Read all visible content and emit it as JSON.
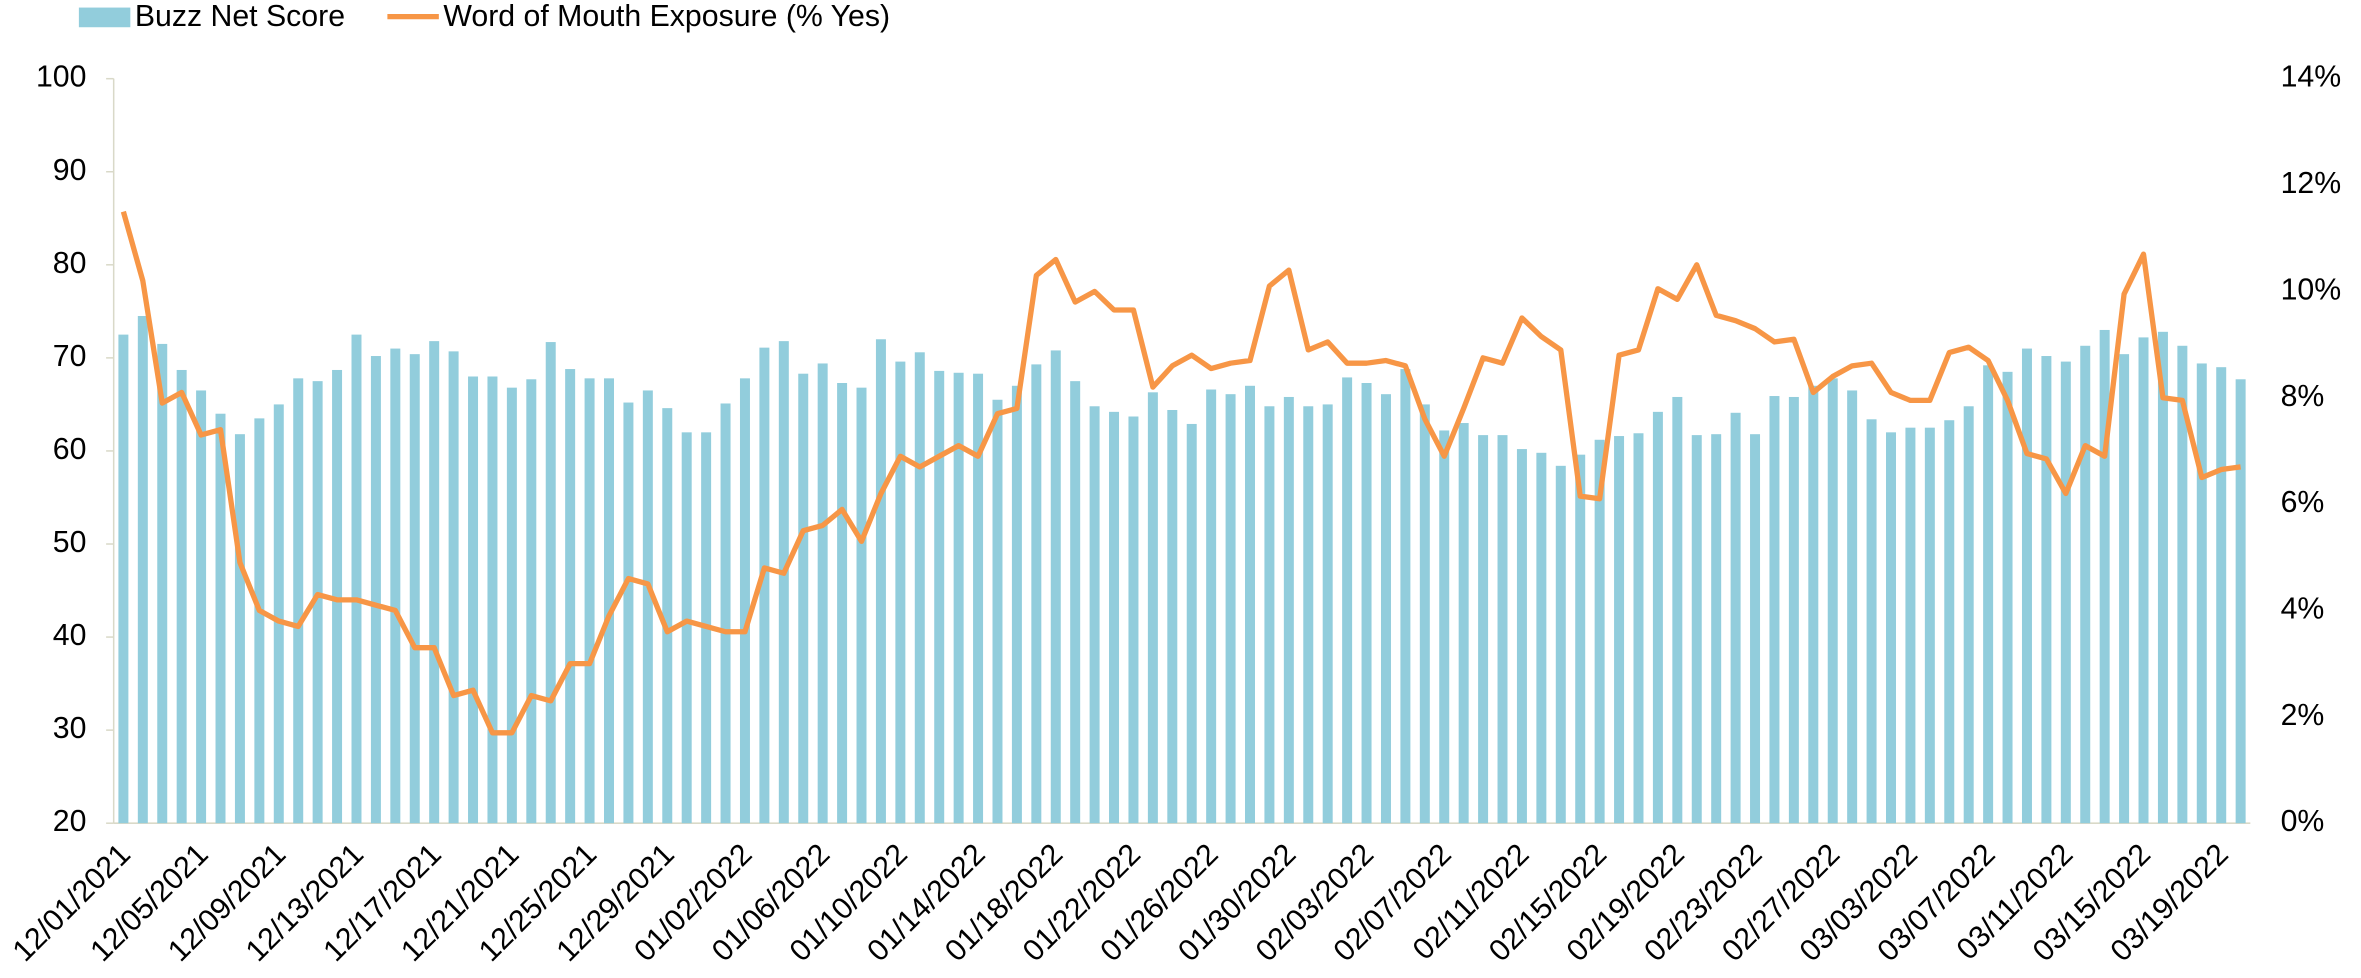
{
  "chart_data": {
    "type": "bar-line",
    "categories": [
      "12/01/2021",
      null,
      null,
      null,
      "12/05/2021",
      null,
      null,
      null,
      "12/09/2021",
      null,
      null,
      null,
      "12/13/2021",
      null,
      null,
      null,
      "12/17/2021",
      null,
      null,
      null,
      "12/21/2021",
      null,
      null,
      null,
      "12/25/2021",
      null,
      null,
      null,
      "12/29/2021",
      null,
      null,
      null,
      "01/02/2022",
      null,
      null,
      null,
      "01/06/2022",
      null,
      null,
      null,
      "01/10/2022",
      null,
      null,
      null,
      "01/14/2022",
      null,
      null,
      null,
      "01/18/2022",
      null,
      null,
      null,
      "01/22/2022",
      null,
      null,
      null,
      "01/26/2022",
      null,
      null,
      null,
      "01/30/2022",
      null,
      null,
      null,
      "02/03/2022",
      null,
      null,
      null,
      "02/07/2022",
      null,
      null,
      null,
      "02/11/2022",
      null,
      null,
      null,
      "02/15/2022",
      null,
      null,
      null,
      "02/19/2022",
      null,
      null,
      null,
      "02/23/2022",
      null,
      null,
      null,
      "02/27/2022",
      null,
      null,
      null,
      "03/03/2022",
      null,
      null,
      null,
      "03/07/2022",
      null,
      null,
      null,
      "03/11/2022",
      null,
      null,
      null,
      "03/15/2022",
      null,
      null,
      null,
      "03/19/2022",
      null
    ],
    "series": [
      {
        "name": "Buzz Net Score",
        "type": "bar",
        "color": "#92cddc",
        "values": [
          72.5,
          74.5,
          71.5,
          68.7,
          66.5,
          64,
          61.8,
          63.5,
          65,
          67.8,
          67.5,
          68.7,
          72.5,
          70.2,
          71,
          70.4,
          71.8,
          70.7,
          68,
          68,
          66.8,
          67.7,
          71.7,
          68.8,
          67.8,
          67.8,
          65.2,
          66.5,
          64.6,
          62,
          62,
          65.1,
          67.8,
          71.1,
          71.8,
          68.3,
          69.4,
          67.3,
          66.8,
          72,
          69.6,
          70.6,
          68.6,
          68.4,
          68.3,
          65.5,
          67,
          69.3,
          70.8,
          67.5,
          64.8,
          64.2,
          63.7,
          66.3,
          64.4,
          62.9,
          66.6,
          66.1,
          67,
          64.8,
          65.8,
          64.8,
          65,
          67.9,
          67.3,
          66.1,
          68.8,
          65,
          62.2,
          63,
          61.7,
          61.7,
          60.2,
          59.8,
          58.4,
          59.6,
          61.2,
          61.6,
          61.9,
          64.2,
          65.8,
          61.7,
          61.8,
          64.1,
          61.8,
          65.9,
          65.8,
          67,
          67.8,
          66.5,
          63.4,
          62,
          62.5,
          62.5,
          63.3,
          64.8,
          69.2,
          68.5,
          71,
          70.2,
          69.6,
          71.3,
          73,
          70.4,
          72.2,
          72.8,
          71.3,
          69.4,
          69,
          67.7
        ]
      },
      {
        "name": "Word of Mouth Exposure (% Yes)",
        "type": "line",
        "axis": "y2",
        "color": "#f79646",
        "values": [
          11.5,
          10.2,
          7.9,
          8.1,
          7.3,
          7.4,
          4.9,
          4.0,
          3.8,
          3.7,
          4.3,
          4.2,
          4.2,
          4.1,
          4.0,
          3.3,
          3.3,
          2.4,
          2.5,
          1.7,
          1.7,
          2.4,
          2.3,
          3.0,
          3.0,
          3.9,
          4.6,
          4.5,
          3.6,
          3.8,
          3.7,
          3.6,
          3.6,
          4.8,
          4.7,
          5.5,
          5.6,
          5.9,
          5.3,
          6.2,
          6.9,
          6.7,
          6.9,
          7.1,
          6.9,
          7.7,
          7.8,
          10.3,
          10.6,
          9.8,
          10.0,
          9.65,
          9.65,
          8.2,
          8.6,
          8.8,
          8.55,
          8.65,
          8.7,
          10.1,
          10.4,
          8.9,
          9.05,
          8.65,
          8.65,
          8.7,
          8.6,
          7.6,
          6.9,
          7.8,
          8.75,
          8.65,
          9.5,
          9.15,
          8.9,
          6.15,
          6.1,
          8.8,
          8.9,
          10.05,
          9.85,
          10.5,
          9.55,
          9.45,
          9.3,
          9.05,
          9.1,
          8.1,
          8.4,
          8.6,
          8.65,
          8.1,
          7.95,
          7.95,
          8.85,
          8.95,
          8.7,
          7.95,
          6.95,
          6.85,
          6.2,
          7.1,
          6.9,
          9.95,
          10.7,
          8.0,
          7.95,
          6.5,
          6.65,
          6.7
        ]
      }
    ],
    "ylim": [
      20,
      100
    ],
    "yticks": [
      20,
      30,
      40,
      50,
      60,
      70,
      80,
      90,
      100
    ],
    "y2lim": [
      0,
      14
    ],
    "y2ticks": [
      {
        "value": 0,
        "label": "0%"
      },
      {
        "value": 2,
        "label": "2%"
      },
      {
        "value": 4,
        "label": "4%"
      },
      {
        "value": 6,
        "label": "6%"
      },
      {
        "value": 8,
        "label": "8%"
      },
      {
        "value": 10,
        "label": "10%"
      },
      {
        "value": 12,
        "label": "12%"
      },
      {
        "value": 14,
        "label": "14%"
      }
    ],
    "legend": "top-left"
  }
}
